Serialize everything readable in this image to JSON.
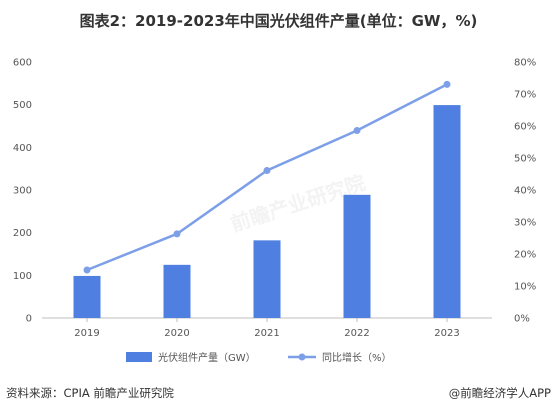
{
  "chart_data": {
    "type": "bar",
    "title": "图表2：2019-2023年中国光伏组件产量(单位：GW，%)",
    "categories": [
      "2019",
      "2020",
      "2021",
      "2022",
      "2023"
    ],
    "series": [
      {
        "name": "光伏组件产量（GW）",
        "type": "bar",
        "axis": "left",
        "color": "#4f7fe0",
        "values": [
          98.6,
          124.6,
          182,
          288.7,
          499
        ]
      },
      {
        "name": "同比增长（%）",
        "type": "line",
        "axis": "right",
        "color": "#7d9fe8",
        "values": [
          15.0,
          26.3,
          46.1,
          58.6,
          73.0
        ]
      }
    ],
    "y_left": {
      "min": 0,
      "max": 600,
      "ticks": [
        "0",
        "100",
        "200",
        "300",
        "400",
        "500",
        "600"
      ]
    },
    "y_right": {
      "min": 0,
      "max": 80,
      "ticks": [
        "0%",
        "10%",
        "20%",
        "30%",
        "40%",
        "50%",
        "60%",
        "70%",
        "80%"
      ]
    },
    "grid": false,
    "legend": "bottom"
  },
  "watermark": "前瞻产业研究院",
  "footer": {
    "source": "资料来源：CPIA 前瞻产业研究院",
    "brand": "@前瞻经济学人APP"
  }
}
